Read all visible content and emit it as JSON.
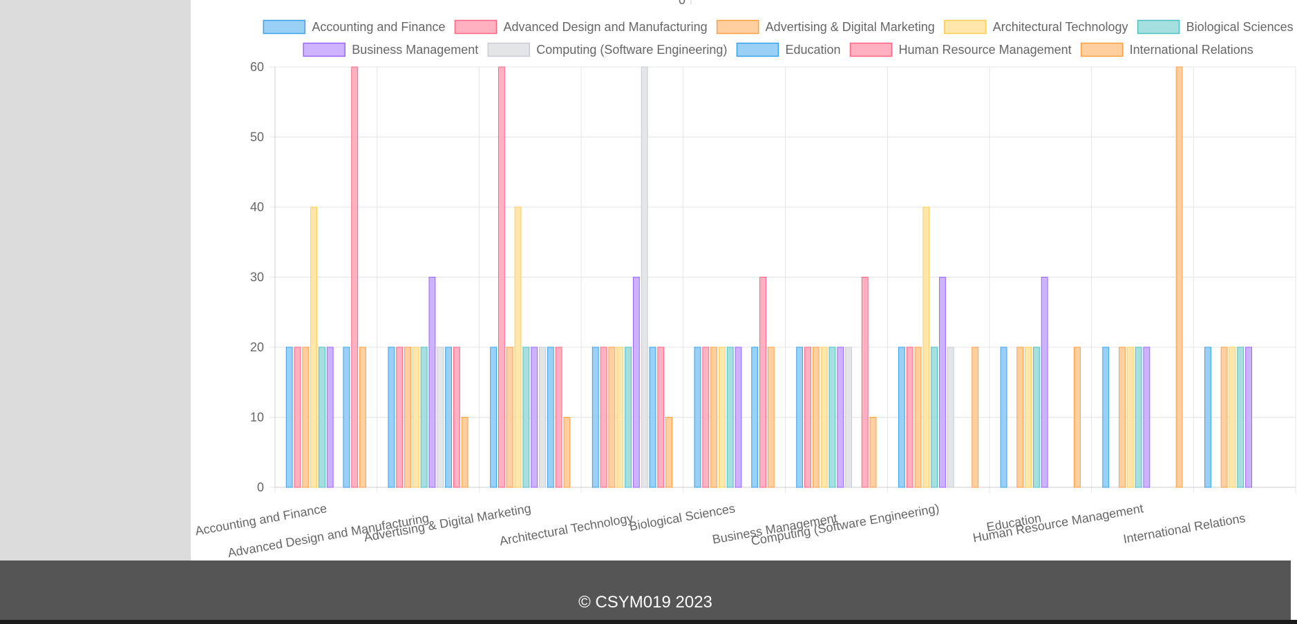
{
  "footer": {
    "copyright": "© CSYM019 2023"
  },
  "chart_data": {
    "type": "bar",
    "title": "",
    "xlabel": "",
    "ylabel": "",
    "ylim": [
      0,
      60
    ],
    "yticks": [
      0,
      10,
      20,
      30,
      40,
      50,
      60
    ],
    "grid": true,
    "legend_position": "top",
    "categories": [
      "Accounting and Finance",
      "Advanced Design and Manufacturing",
      "Advertising & Digital Marketing",
      "Architectural Technology",
      "Biological Sciences",
      "Business Management",
      "Computing (Software Engineering)",
      "Education",
      "Human Resource Management",
      "International Relations"
    ],
    "series": [
      {
        "name": "Accounting and Finance",
        "color": "#36a2eb",
        "fill": "#9ad0f5",
        "values": [
          20,
          20,
          20,
          20,
          20,
          20,
          20,
          20,
          20,
          20
        ]
      },
      {
        "name": "Advanced Design and Manufacturing",
        "color": "#ff6384",
        "fill": "#ffb1c1",
        "values": [
          20,
          20,
          60,
          20,
          20,
          20,
          20,
          0,
          0,
          0
        ]
      },
      {
        "name": "Advertising & Digital Marketing",
        "color": "#ff9f40",
        "fill": "#ffcf9f",
        "values": [
          20,
          20,
          20,
          20,
          20,
          20,
          20,
          20,
          20,
          20
        ]
      },
      {
        "name": "Architectural Technology",
        "color": "#ffcd56",
        "fill": "#ffe6aa",
        "values": [
          40,
          20,
          40,
          20,
          20,
          20,
          40,
          20,
          20,
          20
        ]
      },
      {
        "name": "Biological Sciences",
        "color": "#4bc0c0",
        "fill": "#a5dfdf",
        "values": [
          20,
          20,
          20,
          20,
          20,
          20,
          20,
          20,
          20,
          20
        ]
      },
      {
        "name": "Business Management",
        "color": "#9966ff",
        "fill": "#ccb2ff",
        "values": [
          20,
          30,
          20,
          30,
          20,
          20,
          30,
          30,
          20,
          20
        ]
      },
      {
        "name": "Computing (Software Engineering)",
        "color": "#c9cbcf",
        "fill": "#e4e5e7",
        "values": [
          0,
          20,
          20,
          60,
          0,
          20,
          20,
          0,
          0,
          0
        ]
      },
      {
        "name": "Education",
        "color": "#36a2eb",
        "fill": "#9ad0f5",
        "values": [
          20,
          20,
          20,
          20,
          20,
          0,
          0,
          0,
          0,
          0
        ]
      },
      {
        "name": "Human Resource Management",
        "color": "#ff6384",
        "fill": "#ffb1c1",
        "values": [
          60,
          20,
          20,
          20,
          30,
          30,
          0,
          0,
          0,
          0
        ]
      },
      {
        "name": "International Relations",
        "color": "#ff9f40",
        "fill": "#ffcf9f",
        "values": [
          20,
          10,
          10,
          10,
          20,
          10,
          20,
          20,
          60,
          0
        ]
      }
    ]
  }
}
